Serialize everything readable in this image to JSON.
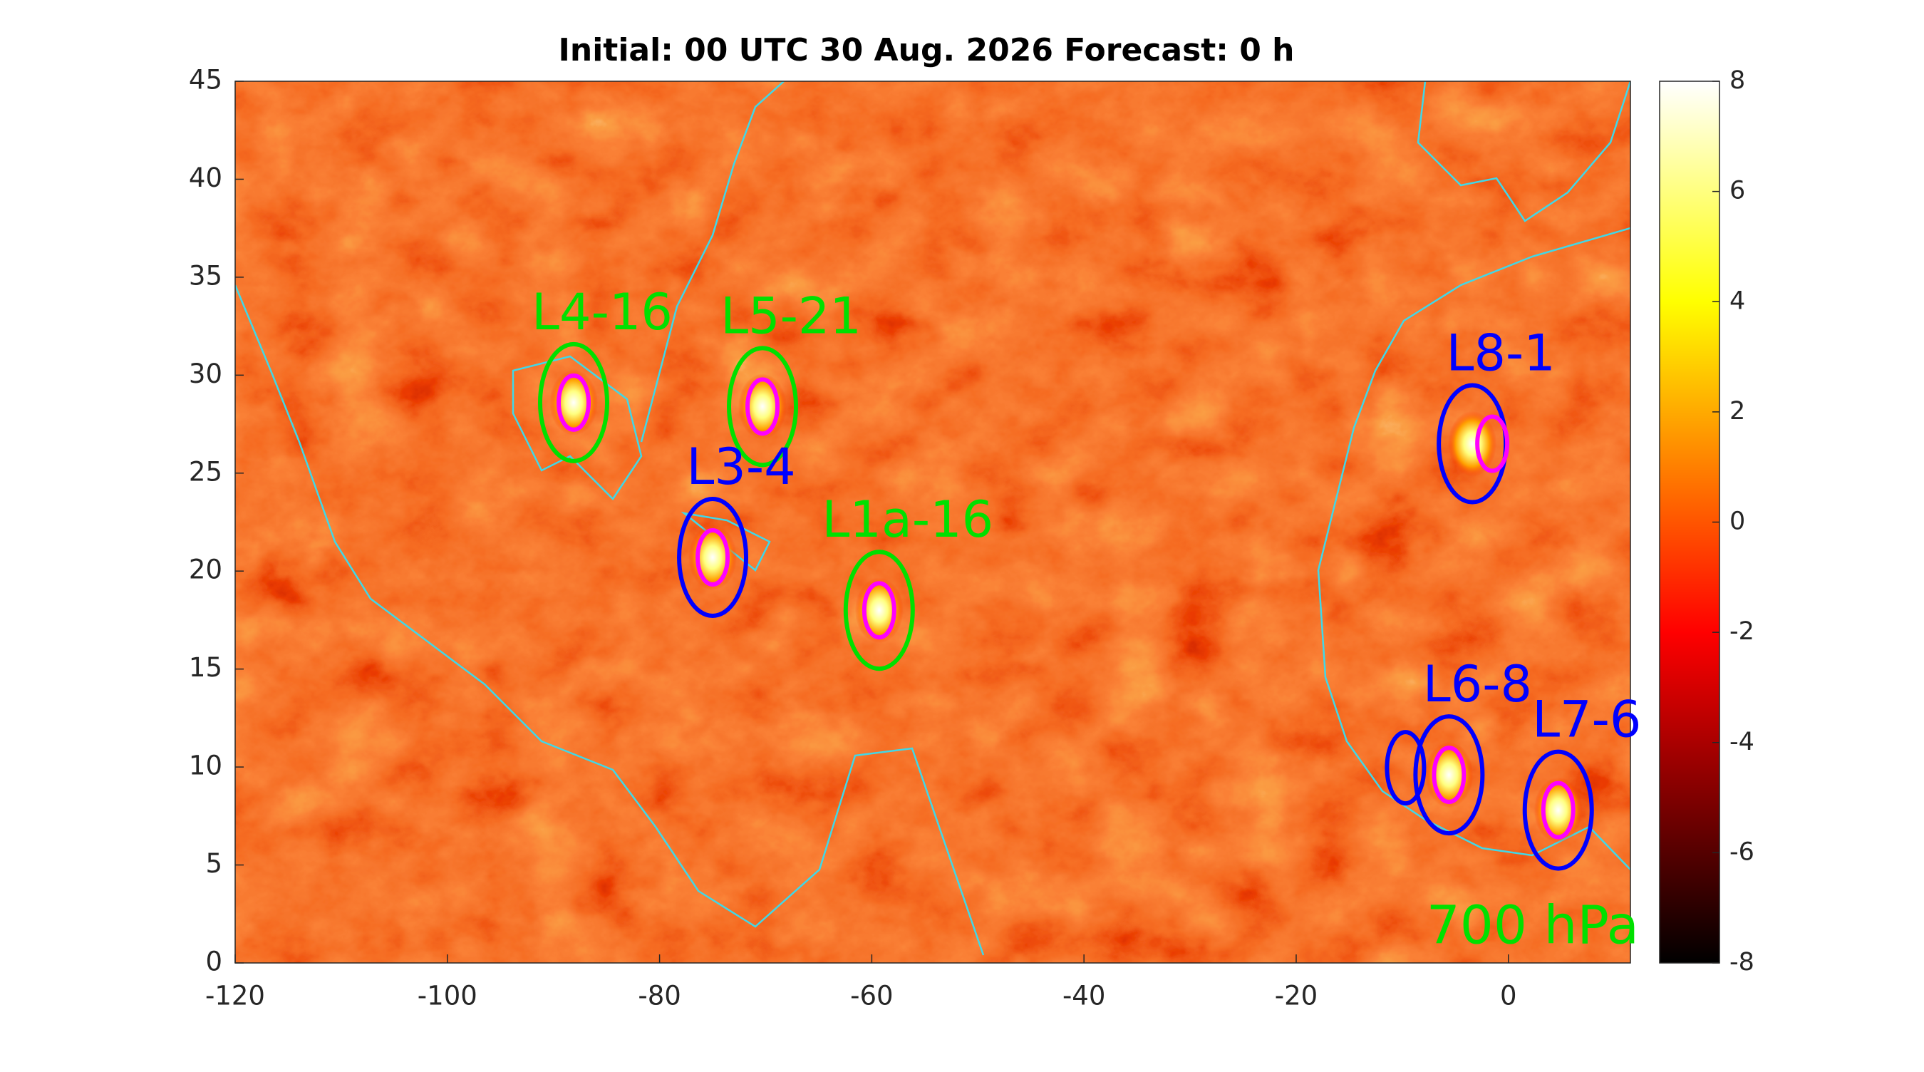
{
  "chart_data": {
    "type": "heatmap",
    "title": "Initial: 00 UTC 30 Aug. 2026 Forecast: 0 h",
    "xlim": [
      -120,
      11.5
    ],
    "ylim": [
      0,
      45
    ],
    "xticks": [
      -120,
      -100,
      -80,
      -60,
      -40,
      -20,
      0
    ],
    "yticks": [
      0,
      5,
      10,
      15,
      20,
      25,
      30,
      35,
      40,
      45
    ],
    "colormap": "hot",
    "colorbar": {
      "lim": [
        -8,
        8
      ],
      "ticks": [
        -8,
        -6,
        -4,
        -2,
        0,
        2,
        4,
        6,
        8
      ]
    },
    "level_label": "700 hPa",
    "level_label_color": "#00e000",
    "features": [
      {
        "label": "L4-16",
        "lon": -88.1,
        "lat": 28.6,
        "color": "#00e000"
      },
      {
        "label": "L5-21",
        "lon": -70.3,
        "lat": 28.4,
        "color": "#00e000"
      },
      {
        "label": "L3-4",
        "lon": -75.0,
        "lat": 20.7,
        "color": "#0000ff"
      },
      {
        "label": "L1a-16",
        "lon": -59.3,
        "lat": 18.0,
        "color": "#00e000"
      },
      {
        "label": "L8-1",
        "lon": -3.4,
        "lat": 26.5,
        "color": "#0000ff"
      },
      {
        "label": "L6-8",
        "lon": -5.6,
        "lat": 9.6,
        "color": "#0000ff"
      },
      {
        "label": "L7-6",
        "lon": 4.7,
        "lat": 7.8,
        "color": "#0000ff"
      }
    ]
  }
}
